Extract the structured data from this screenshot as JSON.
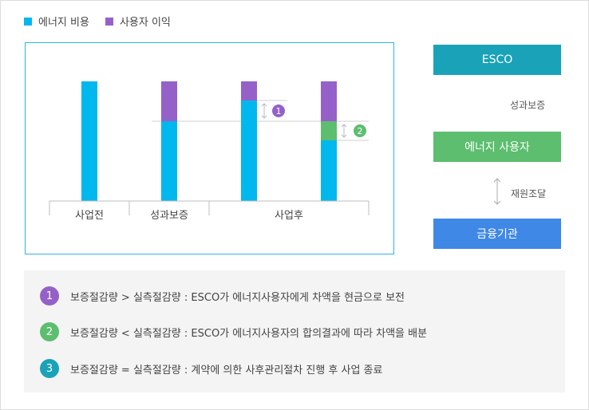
{
  "legend": {
    "energy_cost": {
      "label": "에너지 비용",
      "color": "#00b7ee"
    },
    "user_profit": {
      "label": "사용자 이익",
      "color": "#9561c9"
    }
  },
  "chart_data": {
    "type": "bar",
    "stacked": true,
    "categories": [
      "사업전",
      "성과보증",
      "사업후"
    ],
    "legend_placement": "top-left",
    "grid": false,
    "colors": {
      "energy": "#00b7ee",
      "user": "#9561c9",
      "extra": "#5cbe6e"
    },
    "markers": [
      {
        "label": "1",
        "color": "#9561c9"
      },
      {
        "label": "2",
        "color": "#5cbe6e"
      }
    ]
  },
  "flow": {
    "esco": {
      "label": "ESCO",
      "color": "#1aa3b8",
      "shadow": "#7ed0dc"
    },
    "link1": "성과보증",
    "user": {
      "label": "에너지 사용자",
      "color": "#5cbe6e",
      "shadow": "#a8dcae"
    },
    "link2": "재원조달",
    "bank": {
      "label": "금융기관",
      "color": "#3f88e6",
      "shadow": "#93bdf2"
    }
  },
  "notes": [
    {
      "num": "1",
      "color": "#9561c9",
      "text": "보증절감량 > 실측절감량 : ESCO가 에너지사용자에게 차액을 현금으로 보전"
    },
    {
      "num": "2",
      "color": "#5cbe6e",
      "text": "보증절감량 < 실측절감량 : ESCO가 에너지사용자의 합의결과에 따라 차액을 배분"
    },
    {
      "num": "3",
      "color": "#1aa3b8",
      "text": "보증절감량 = 실측절감량 : 계약에 의한 사후관리절차 진행 후 사업 종료"
    }
  ]
}
